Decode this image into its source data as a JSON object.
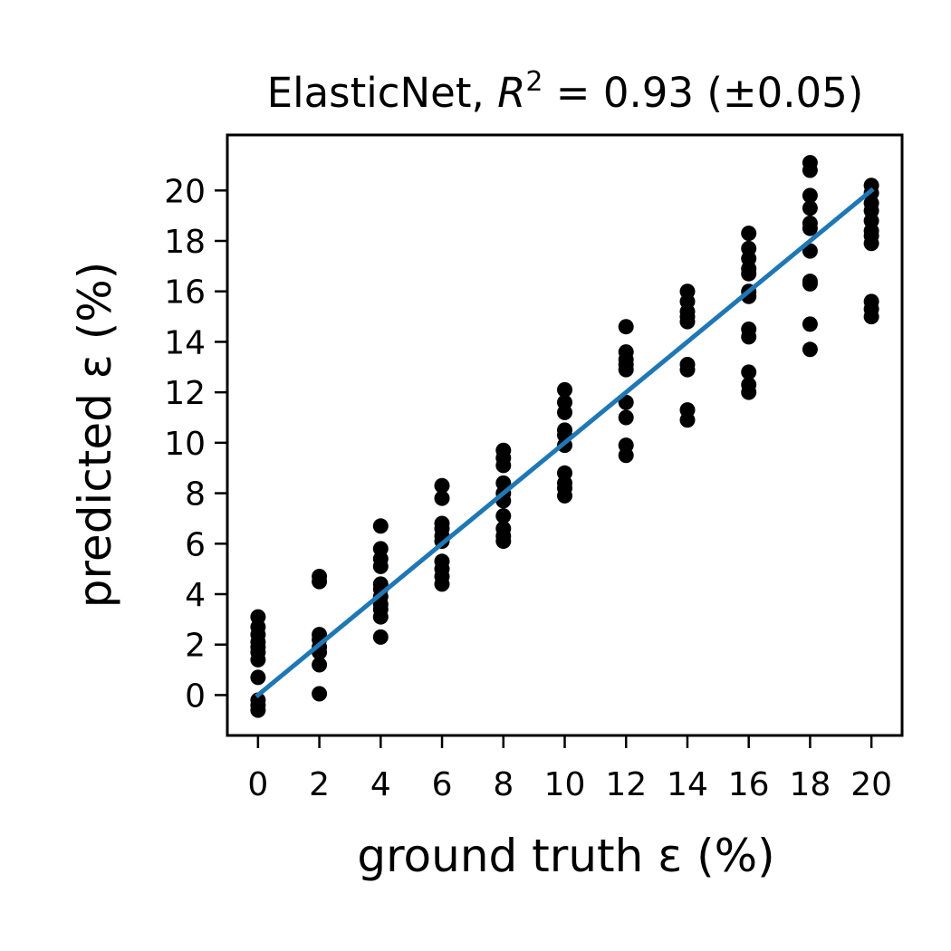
{
  "chart_data": {
    "type": "scatter",
    "title": "ElasticNet, R² = 0.93 (±0.05)",
    "title_parts": {
      "prefix": "ElasticNet, ",
      "symbol": "R",
      "exponent": "2",
      "rest": " = 0.93 (±0.05)"
    },
    "xlabel": "ground truth ε (%)",
    "ylabel": "predicted ε (%)",
    "xlim": [
      -1,
      21
    ],
    "ylim": [
      -1.6,
      22.2
    ],
    "xticks": [
      "0",
      "2",
      "4",
      "6",
      "8",
      "10",
      "12",
      "14",
      "16",
      "18",
      "20"
    ],
    "yticks": [
      "0",
      "2",
      "4",
      "6",
      "8",
      "10",
      "12",
      "14",
      "16",
      "18",
      "20"
    ],
    "grid": false,
    "legend": "none",
    "point_color": "#000000",
    "line_color": "#1f77b4",
    "series": [
      {
        "type": "scatter",
        "points": [
          [
            0,
            3.1
          ],
          [
            0,
            2.7
          ],
          [
            0,
            2.4
          ],
          [
            0,
            2.1
          ],
          [
            0,
            1.9
          ],
          [
            0,
            1.7
          ],
          [
            0,
            1.4
          ],
          [
            0,
            0.7
          ],
          [
            0,
            -0.2
          ],
          [
            0,
            -0.4
          ],
          [
            0,
            -0.6
          ],
          [
            2,
            4.7
          ],
          [
            2,
            4.5
          ],
          [
            2,
            2.4
          ],
          [
            2,
            2.2
          ],
          [
            2,
            1.9
          ],
          [
            2,
            1.7
          ],
          [
            2,
            1.2
          ],
          [
            2,
            0.05
          ],
          [
            4,
            6.7
          ],
          [
            4,
            5.8
          ],
          [
            4,
            5.4
          ],
          [
            4,
            5.1
          ],
          [
            4,
            4.4
          ],
          [
            4,
            4.2
          ],
          [
            4,
            3.9
          ],
          [
            4,
            3.6
          ],
          [
            4,
            3.4
          ],
          [
            4,
            3.1
          ],
          [
            4,
            2.3
          ],
          [
            6,
            8.3
          ],
          [
            6,
            7.8
          ],
          [
            6,
            6.8
          ],
          [
            6,
            6.6
          ],
          [
            6,
            6.3
          ],
          [
            6,
            6.1
          ],
          [
            6,
            5.3
          ],
          [
            6,
            5.0
          ],
          [
            6,
            4.7
          ],
          [
            6,
            4.4
          ],
          [
            8,
            9.7
          ],
          [
            8,
            9.4
          ],
          [
            8,
            9.1
          ],
          [
            8,
            8.4
          ],
          [
            8,
            8.0
          ],
          [
            8,
            7.7
          ],
          [
            8,
            7.1
          ],
          [
            8,
            6.6
          ],
          [
            8,
            6.3
          ],
          [
            8,
            6.1
          ],
          [
            10,
            12.1
          ],
          [
            10,
            11.6
          ],
          [
            10,
            11.2
          ],
          [
            10,
            10.5
          ],
          [
            10,
            10.3
          ],
          [
            10,
            9.9
          ],
          [
            10,
            8.8
          ],
          [
            10,
            8.4
          ],
          [
            10,
            8.2
          ],
          [
            10,
            7.9
          ],
          [
            12,
            14.6
          ],
          [
            12,
            13.6
          ],
          [
            12,
            13.3
          ],
          [
            12,
            13.1
          ],
          [
            12,
            12.9
          ],
          [
            12,
            11.6
          ],
          [
            12,
            11.0
          ],
          [
            12,
            9.9
          ],
          [
            12,
            9.5
          ],
          [
            14,
            16.0
          ],
          [
            14,
            15.6
          ],
          [
            14,
            15.2
          ],
          [
            14,
            15.0
          ],
          [
            14,
            14.8
          ],
          [
            14,
            13.1
          ],
          [
            14,
            12.9
          ],
          [
            14,
            11.3
          ],
          [
            14,
            10.9
          ],
          [
            16,
            18.3
          ],
          [
            16,
            17.7
          ],
          [
            16,
            17.3
          ],
          [
            16,
            16.9
          ],
          [
            16,
            16.7
          ],
          [
            16,
            16.0
          ],
          [
            16,
            15.8
          ],
          [
            16,
            14.5
          ],
          [
            16,
            14.2
          ],
          [
            16,
            12.8
          ],
          [
            16,
            12.3
          ],
          [
            16,
            12.0
          ],
          [
            18,
            21.1
          ],
          [
            18,
            20.8
          ],
          [
            18,
            19.8
          ],
          [
            18,
            19.3
          ],
          [
            18,
            18.7
          ],
          [
            18,
            18.5
          ],
          [
            18,
            17.6
          ],
          [
            18,
            16.4
          ],
          [
            18,
            16.3
          ],
          [
            18,
            14.7
          ],
          [
            18,
            13.7
          ],
          [
            20,
            20.2
          ],
          [
            20,
            19.9
          ],
          [
            20,
            19.5
          ],
          [
            20,
            19.2
          ],
          [
            20,
            18.8
          ],
          [
            20,
            18.4
          ],
          [
            20,
            18.2
          ],
          [
            20,
            17.9
          ],
          [
            20,
            15.6
          ],
          [
            20,
            15.3
          ],
          [
            20,
            15.0
          ]
        ]
      },
      {
        "type": "line",
        "x": [
          0,
          20
        ],
        "y": [
          0,
          20
        ]
      }
    ]
  }
}
